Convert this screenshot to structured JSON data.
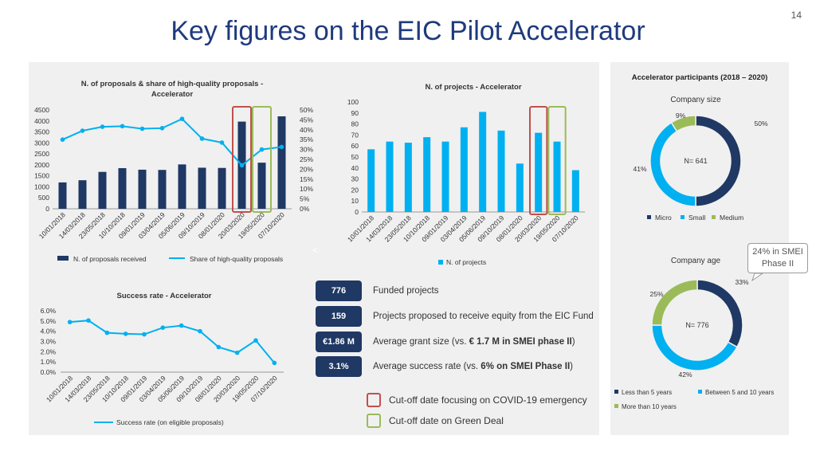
{
  "page_number": "14",
  "title": "Key figures on the EIC Pilot Accelerator",
  "colors": {
    "navy": "#1f3864",
    "cyan": "#00b0f0",
    "green": "#9bbb59",
    "red_marker": "#c0504d",
    "green_marker": "#9bbb59",
    "title": "#1f3a7d"
  },
  "chart_data": [
    {
      "id": "proposals",
      "type": "bar+line",
      "title": "N. of proposals & share of high-quality proposals - Accelerator",
      "categories": [
        "10/01/2018",
        "14/03/2018",
        "23/05/2018",
        "10/10/2018",
        "09/01/2019",
        "03/04/2019",
        "05/06/2019",
        "09/10/2019",
        "08/01/2020",
        "20/03/2020",
        "19/05/2020",
        "07/10/2020"
      ],
      "series": [
        {
          "name": "N. of proposals received",
          "type": "bar",
          "axis": "left",
          "values": [
            1200,
            1300,
            1680,
            1850,
            1780,
            1770,
            2020,
            1870,
            1860,
            3970,
            2100,
            4210
          ]
        },
        {
          "name": "Share of high-quality proposals",
          "type": "line",
          "axis": "right",
          "values": [
            0.35,
            0.395,
            0.415,
            0.418,
            0.405,
            0.408,
            0.455,
            0.355,
            0.335,
            0.22,
            0.3,
            0.313
          ]
        }
      ],
      "y_left": {
        "min": 0,
        "max": 4500,
        "ticks": [
          "0",
          "500",
          "1000",
          "1500",
          "2000",
          "2500",
          "3000",
          "3500",
          "4000",
          "4500"
        ]
      },
      "y_right": {
        "min": 0,
        "max": 0.5,
        "ticks": [
          "0%",
          "5%",
          "10%",
          "15%",
          "20%",
          "25%",
          "30%",
          "35%",
          "40%",
          "45%",
          "50%"
        ]
      },
      "legend": "bottom"
    },
    {
      "id": "projects",
      "type": "bar",
      "title": "N. of projects - Accelerator",
      "categories": [
        "10/01/2018",
        "14/03/2018",
        "23/05/2018",
        "10/10/2018",
        "09/01/2019",
        "03/04/2019",
        "05/06/2019",
        "09/10/2019",
        "08/01/2020",
        "20/03/2020",
        "19/05/2020",
        "07/10/2020"
      ],
      "series": [
        {
          "name": "N. of projects",
          "values": [
            57,
            64,
            63,
            68,
            64,
            77,
            91,
            74,
            44,
            72,
            64,
            38
          ]
        }
      ],
      "y": {
        "min": 0,
        "max": 100,
        "ticks": [
          "0",
          "10",
          "20",
          "30",
          "40",
          "50",
          "60",
          "70",
          "80",
          "90",
          "100"
        ]
      },
      "legend": "bottom"
    },
    {
      "id": "success",
      "type": "line",
      "title": "Success rate - Accelerator",
      "categories": [
        "10/01/2018",
        "14/03/2018",
        "23/05/2018",
        "10/10/2018",
        "09/01/2019",
        "03/04/2019",
        "05/06/2019",
        "09/10/2019",
        "08/01/2020",
        "20/03/2020",
        "19/05/2020",
        "07/10/2020"
      ],
      "series": [
        {
          "name": "Success rate (on eligible proposals)",
          "values": [
            0.049,
            0.0505,
            0.0385,
            0.0375,
            0.037,
            0.0435,
            0.0455,
            0.04,
            0.0245,
            0.019,
            0.031,
            0.009
          ]
        }
      ],
      "y": {
        "min": 0,
        "max": 0.06,
        "ticks": [
          "0.0%",
          "1.0%",
          "2.0%",
          "3.0%",
          "4.0%",
          "5.0%",
          "6.0%"
        ]
      },
      "legend": "bottom"
    },
    {
      "id": "company-size",
      "type": "pie",
      "title": "Company size",
      "center_label": "N= 641",
      "slices": [
        {
          "name": "Micro",
          "value": 50,
          "label": "50%"
        },
        {
          "name": "Small",
          "value": 41,
          "label": "41%"
        },
        {
          "name": "Medium",
          "value": 9,
          "label": "9%"
        }
      ]
    },
    {
      "id": "company-age",
      "type": "pie",
      "title": "Company age",
      "center_label": "N= 776",
      "slices": [
        {
          "name": "Less than 5 years",
          "value": 33,
          "label": "33%"
        },
        {
          "name": "Between 5 and 10 years",
          "value": 42,
          "label": "42%"
        },
        {
          "name": "More than 10 years",
          "value": 25,
          "label": "25%"
        }
      ]
    }
  ],
  "participants_title": "Accelerator participants (2018 – 2020)",
  "callout": {
    "line1": "24% in SMEI",
    "line2": "Phase II"
  },
  "nav_arrow": "<",
  "key_figures": [
    {
      "value": "776",
      "text": "Funded projects",
      "bold": "",
      "tail": ""
    },
    {
      "value": "159",
      "text": "Projects proposed to receive equity from the EIC Fund",
      "bold": "",
      "tail": ""
    },
    {
      "value": "€1.86 M",
      "text": "Average grant size (vs. ",
      "bold": "€ 1.7 M in SMEI phase II",
      "tail": ")"
    },
    {
      "value": "3.1%",
      "text": "Average success rate (vs. ",
      "bold": "6% on SMEI Phase II",
      "tail": ")"
    }
  ],
  "marker_legend": {
    "red": "Cut-off date focusing on COVID-19 emergency",
    "green": "Cut-off date on Green Deal"
  }
}
